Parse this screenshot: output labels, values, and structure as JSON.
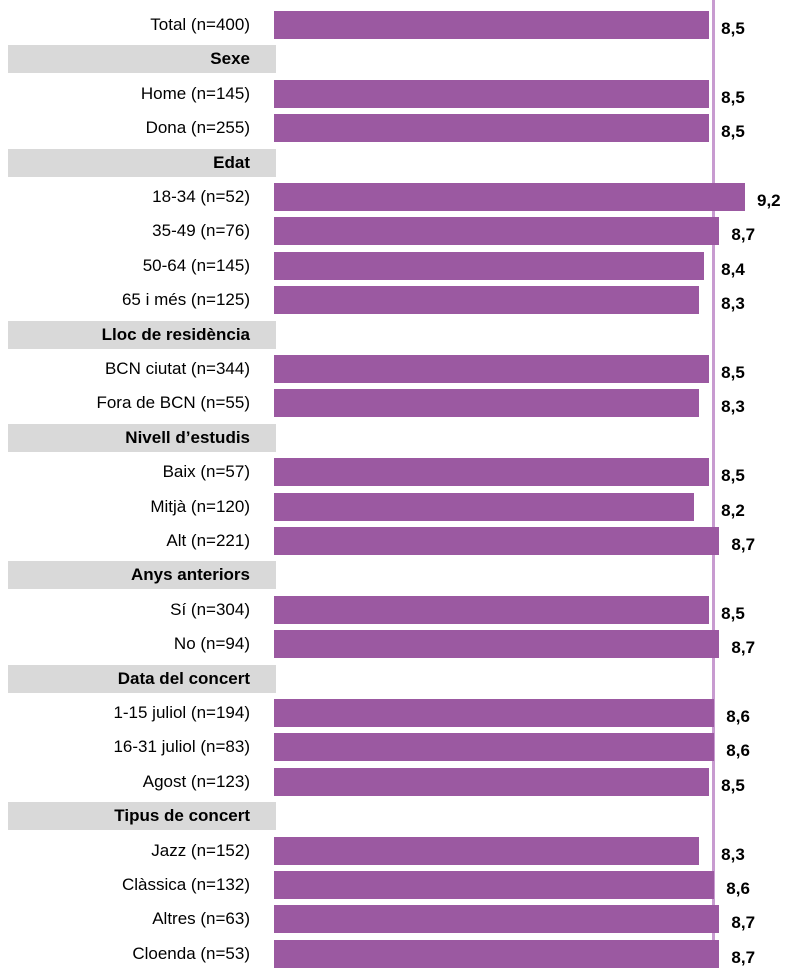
{
  "chart_data": {
    "type": "bar",
    "orientation": "horizontal",
    "bar_color": "#9b59a1",
    "reference_line_color": "#c89bd0",
    "header_fill": "#d9d9d9",
    "xlim": [
      0,
      9.3
    ],
    "reference_value": 8.5,
    "rows": [
      {
        "kind": "bar",
        "label": "Total (n=400)",
        "value": 8.5,
        "value_label": "8,5"
      },
      {
        "kind": "header",
        "label": "Sexe"
      },
      {
        "kind": "bar",
        "label": "Home (n=145)",
        "value": 8.5,
        "value_label": "8,5"
      },
      {
        "kind": "bar",
        "label": "Dona (n=255)",
        "value": 8.5,
        "value_label": "8,5"
      },
      {
        "kind": "header",
        "label": "Edat"
      },
      {
        "kind": "bar",
        "label": "18-34 (n=52)",
        "value": 9.2,
        "value_label": "9,2"
      },
      {
        "kind": "bar",
        "label": "35-49 (n=76)",
        "value": 8.7,
        "value_label": "8,7"
      },
      {
        "kind": "bar",
        "label": "50-64 (n=145)",
        "value": 8.4,
        "value_label": "8,4"
      },
      {
        "kind": "bar",
        "label": "65 i més (n=125)",
        "value": 8.3,
        "value_label": "8,3"
      },
      {
        "kind": "header",
        "label": "Lloc de residència"
      },
      {
        "kind": "bar",
        "label": "BCN ciutat (n=344)",
        "value": 8.5,
        "value_label": "8,5"
      },
      {
        "kind": "bar",
        "label": "Fora de BCN (n=55)",
        "value": 8.3,
        "value_label": "8,3"
      },
      {
        "kind": "header",
        "label": "Nivell d’estudis"
      },
      {
        "kind": "bar",
        "label": "Baix (n=57)",
        "value": 8.5,
        "value_label": "8,5"
      },
      {
        "kind": "bar",
        "label": "Mitjà (n=120)",
        "value": 8.2,
        "value_label": "8,2"
      },
      {
        "kind": "bar",
        "label": "Alt (n=221)",
        "value": 8.7,
        "value_label": "8,7"
      },
      {
        "kind": "header",
        "label": "Anys anteriors"
      },
      {
        "kind": "bar",
        "label": "Sí (n=304)",
        "value": 8.5,
        "value_label": "8,5"
      },
      {
        "kind": "bar",
        "label": "No (n=94)",
        "value": 8.7,
        "value_label": "8,7"
      },
      {
        "kind": "header",
        "label": "Data del concert"
      },
      {
        "kind": "bar",
        "label": "1-15 juliol (n=194)",
        "value": 8.6,
        "value_label": "8,6"
      },
      {
        "kind": "bar",
        "label": "16-31 juliol (n=83)",
        "value": 8.6,
        "value_label": "8,6"
      },
      {
        "kind": "bar",
        "label": "Agost (n=123)",
        "value": 8.5,
        "value_label": "8,5"
      },
      {
        "kind": "header",
        "label": "Tipus de concert"
      },
      {
        "kind": "bar",
        "label": "Jazz (n=152)",
        "value": 8.3,
        "value_label": "8,3"
      },
      {
        "kind": "bar",
        "label": "Clàssica (n=132)",
        "value": 8.6,
        "value_label": "8,6"
      },
      {
        "kind": "bar",
        "label": "Altres (n=63)",
        "value": 8.7,
        "value_label": "8,7"
      },
      {
        "kind": "bar",
        "label": "Cloenda (n=53)",
        "value": 8.7,
        "value_label": "8,7"
      }
    ]
  }
}
